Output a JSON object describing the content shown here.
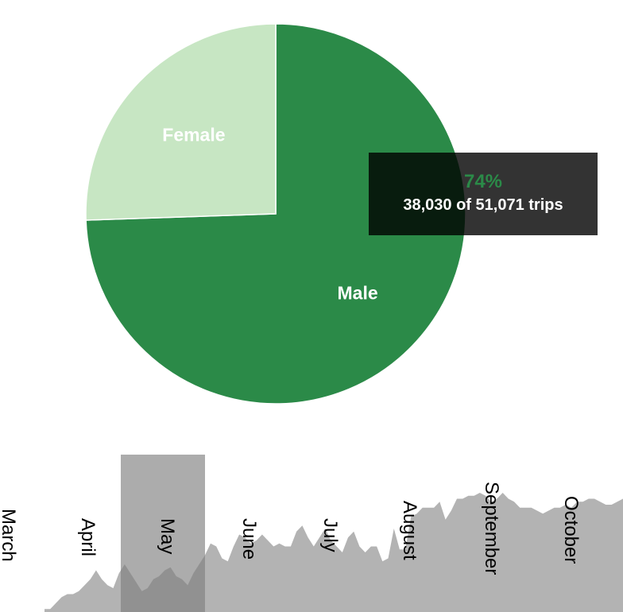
{
  "chart_data": [
    {
      "type": "pie",
      "slices": [
        {
          "label": "Male",
          "value": 38030,
          "color": "#2b8a48"
        },
        {
          "label": "Female",
          "value": 13041,
          "color": "#c7e6c3"
        }
      ],
      "tooltip": {
        "percent": "74%",
        "detail": "38,030 of 51,071 trips",
        "percent_color": "#2b8a48"
      }
    },
    {
      "type": "area",
      "color": "#b3b3b3",
      "x_ticks": [
        "March",
        "April",
        "May",
        "June",
        "July",
        "August",
        "September",
        "October"
      ],
      "values": [
        1,
        1,
        3,
        5,
        6,
        6,
        7,
        9,
        11,
        14,
        11,
        9,
        8,
        13,
        16,
        13,
        10,
        7,
        8,
        11,
        12,
        14,
        15,
        12,
        11,
        9,
        13,
        16,
        19,
        23,
        22,
        18,
        17,
        22,
        26,
        25,
        23,
        24,
        26,
        24,
        22,
        23,
        22,
        22,
        27,
        29,
        25,
        22,
        25,
        28,
        24,
        22,
        20,
        25,
        27,
        22,
        20,
        22,
        22,
        17,
        18,
        28,
        21,
        21,
        32,
        33,
        35,
        35,
        35,
        37,
        31,
        34,
        38,
        38,
        39,
        39,
        40,
        39,
        37,
        38,
        40,
        38,
        37,
        35,
        35,
        35,
        34,
        33,
        34,
        35,
        35,
        36,
        35,
        37,
        37,
        38,
        38,
        37,
        36,
        36,
        37,
        38
      ],
      "selection": {
        "start": "May",
        "end": "June",
        "color": "#808080"
      }
    }
  ]
}
